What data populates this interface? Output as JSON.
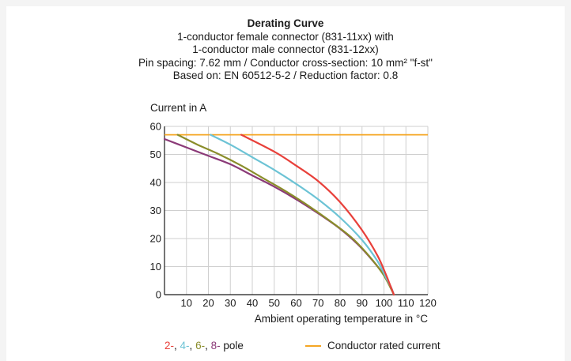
{
  "chart_data": {
    "type": "line",
    "title": "Derating Curve",
    "subtitle_lines": [
      "1-conductor female connector (831-11xx) with",
      "1-conductor male connector (831-12xx)",
      "Pin spacing: 7.62 mm / Conductor cross-section: 10 mm² \"f-st\"",
      "Based on: EN 60512-5-2 / Reduction factor: 0.8"
    ],
    "ylabel": "Current in A",
    "xlabel": "Ambient operating temperature in °C",
    "xlim": [
      0,
      120
    ],
    "ylim": [
      0,
      60
    ],
    "x_ticks": [
      10,
      20,
      30,
      40,
      50,
      60,
      70,
      80,
      90,
      100,
      110,
      120
    ],
    "y_ticks": [
      0,
      10,
      20,
      30,
      40,
      50,
      60
    ],
    "grid": true,
    "series": [
      {
        "name": "2-",
        "color": "#e8403a",
        "points": [
          [
            35,
            57
          ],
          [
            50,
            51
          ],
          [
            60,
            46
          ],
          [
            70,
            40.5
          ],
          [
            80,
            33
          ],
          [
            90,
            23
          ],
          [
            97,
            14
          ],
          [
            101,
            7
          ],
          [
            103,
            3
          ],
          [
            104.5,
            0
          ]
        ]
      },
      {
        "name": "4-",
        "color": "#6cc3d5",
        "points": [
          [
            21,
            57
          ],
          [
            30,
            53.5
          ],
          [
            40,
            49
          ],
          [
            50,
            44.5
          ],
          [
            60,
            39.5
          ],
          [
            70,
            34
          ],
          [
            80,
            27.5
          ],
          [
            90,
            19.5
          ],
          [
            97,
            12
          ],
          [
            101,
            6
          ],
          [
            103,
            3
          ],
          [
            104.5,
            0
          ]
        ]
      },
      {
        "name": "6-",
        "color": "#8a8d2a",
        "points": [
          [
            6,
            57
          ],
          [
            15,
            53.5
          ],
          [
            25,
            50
          ],
          [
            35,
            46
          ],
          [
            45,
            41.5
          ],
          [
            55,
            37
          ],
          [
            65,
            32
          ],
          [
            75,
            26.5
          ],
          [
            85,
            20.5
          ],
          [
            93,
            14
          ],
          [
            99,
            8
          ],
          [
            102,
            4
          ],
          [
            104.5,
            0
          ]
        ]
      },
      {
        "name": "8-",
        "color": "#8b3a78",
        "points": [
          [
            0,
            55.5
          ],
          [
            10,
            52.5
          ],
          [
            20,
            49.5
          ],
          [
            30,
            46.5
          ],
          [
            40,
            42.5
          ],
          [
            50,
            38.5
          ],
          [
            60,
            34
          ],
          [
            70,
            29
          ],
          [
            80,
            23.5
          ],
          [
            88,
            18
          ],
          [
            95,
            12
          ],
          [
            100,
            7
          ],
          [
            103,
            3
          ],
          [
            104.5,
            0
          ]
        ]
      }
    ],
    "rated_current": {
      "name": "Conductor rated current",
      "value": 57,
      "color": "#f5a623"
    },
    "legend": {
      "poles_prefix": [
        "2-",
        "4-",
        "6-",
        "8-"
      ],
      "poles_separators": [
        ", ",
        ", ",
        ", ",
        " "
      ],
      "poles_suffix": "pole",
      "rated_label": "Conductor rated current",
      "placement": "bottom"
    }
  }
}
